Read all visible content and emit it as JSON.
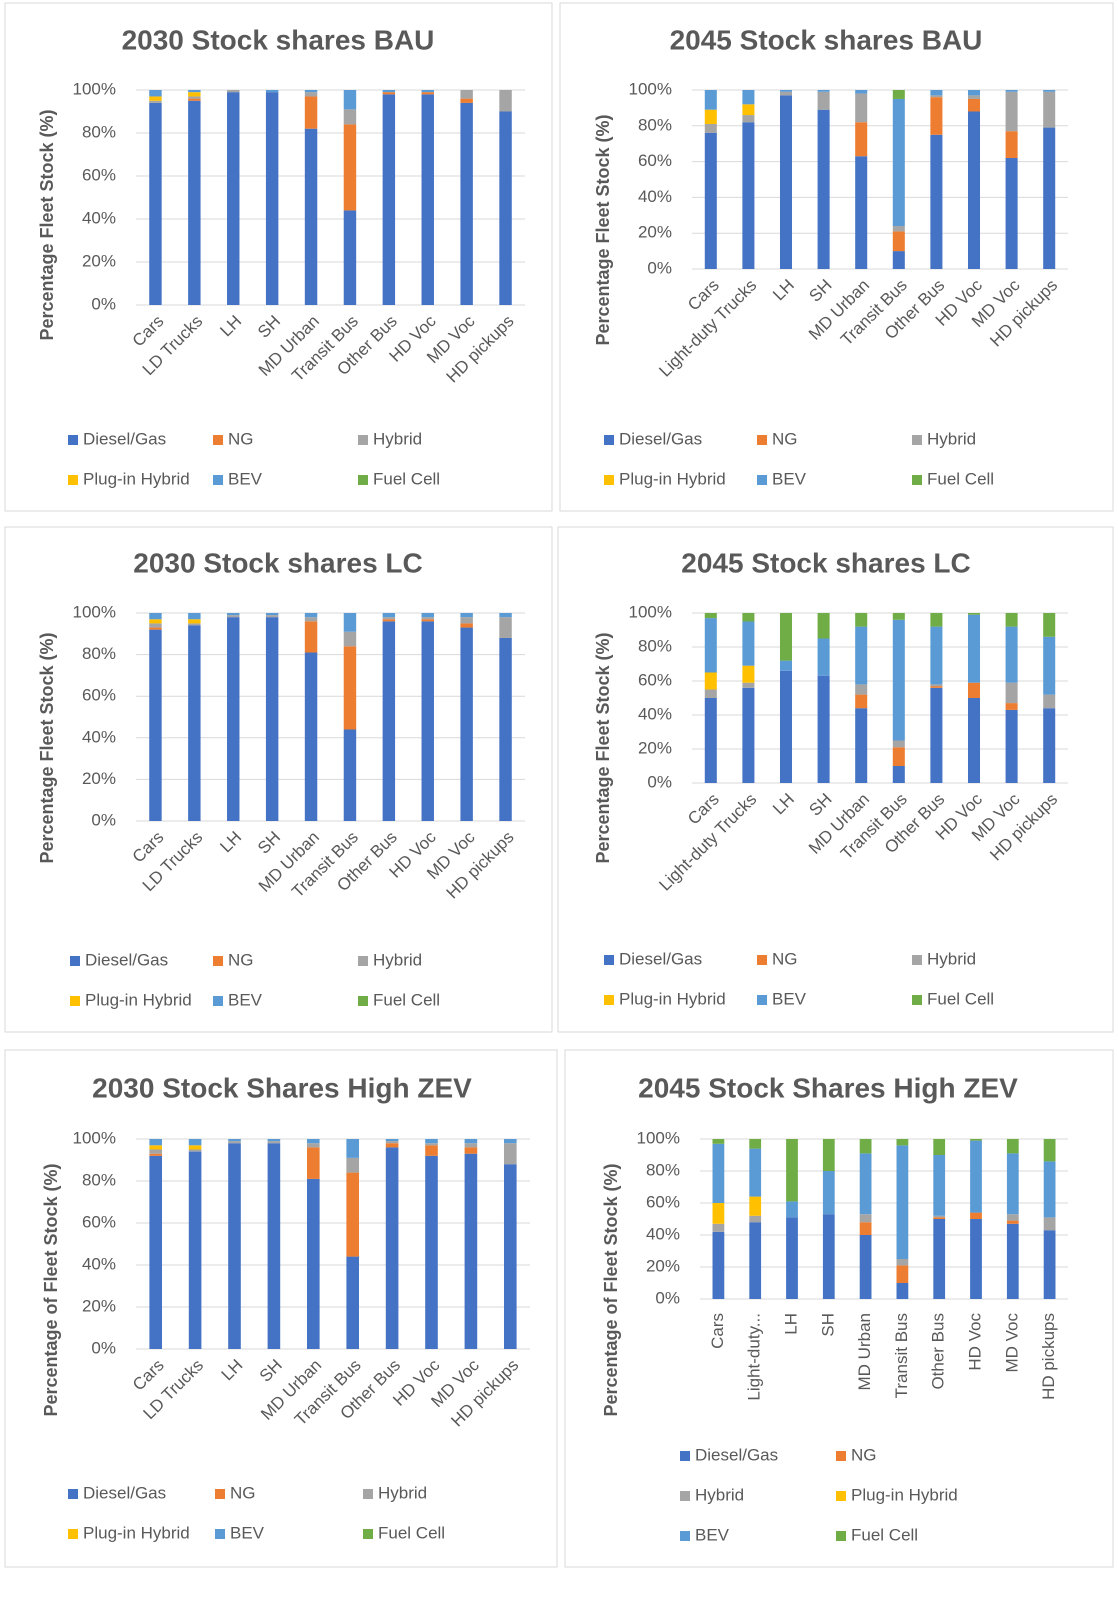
{
  "chart_data": [
    {
      "type": "stacked_bar",
      "title": "2030 Stock shares BAU",
      "y_label": "Percentage Fleet Stock (%)",
      "categories": [
        "Cars",
        "LD Trucks",
        "LH",
        "SH",
        "MD Urban",
        "Transit Bus",
        "Other Bus",
        "HD Voc",
        "MD Voc",
        "HD pickups"
      ],
      "series": [
        {
          "name": "Diesel/Gas",
          "color": "#4472c4",
          "values": [
            94,
            95,
            99,
            99,
            82,
            44,
            98,
            98,
            94,
            90
          ]
        },
        {
          "name": "NG",
          "color": "#ed7d31",
          "values": [
            0,
            1,
            0,
            0,
            15,
            40,
            1,
            1,
            2,
            0
          ]
        },
        {
          "name": "Hybrid",
          "color": "#a5a5a5",
          "values": [
            1,
            1,
            1,
            0,
            2,
            7,
            0,
            0,
            4,
            10
          ]
        },
        {
          "name": "Plug-in Hybrid",
          "color": "#ffc000",
          "values": [
            2,
            2,
            0,
            0,
            0,
            0,
            0,
            0,
            0,
            0
          ]
        },
        {
          "name": "BEV",
          "color": "#5b9bd5",
          "values": [
            3,
            1,
            0,
            1,
            1,
            9,
            1,
            1,
            0,
            0
          ]
        },
        {
          "name": "Fuel Cell",
          "color": "#70ad47",
          "values": [
            0,
            0,
            0,
            0,
            0,
            0,
            0,
            0,
            0,
            0
          ]
        }
      ],
      "ylim": [
        0,
        100
      ],
      "yticks": [
        {
          "value": 0,
          "label": "0%"
        },
        {
          "value": 20,
          "label": "20%"
        },
        {
          "value": 40,
          "label": "40%"
        },
        {
          "value": 60,
          "label": "60%"
        },
        {
          "value": 80,
          "label": "80%"
        },
        {
          "value": 100,
          "label": "100%"
        }
      ],
      "grid": true,
      "legend": "bottom"
    },
    {
      "type": "stacked_bar",
      "title": "2045 Stock shares BAU",
      "y_label": "Percentage Fleet Stock (%)",
      "categories": [
        "Cars",
        "Light-duty Trucks",
        "LH",
        "SH",
        "MD Urban",
        "Transit Bus",
        "Other Bus",
        "HD Voc",
        "MD Voc",
        "HD pickups"
      ],
      "series": [
        {
          "name": "Diesel/Gas",
          "color": "#4472c4",
          "values": [
            76,
            82,
            97,
            89,
            63,
            10,
            75,
            88,
            62,
            79
          ]
        },
        {
          "name": "NG",
          "color": "#ed7d31",
          "values": [
            0,
            0,
            0,
            0,
            19,
            11,
            21,
            7,
            15,
            0
          ]
        },
        {
          "name": "Hybrid",
          "color": "#a5a5a5",
          "values": [
            5,
            4,
            2,
            10,
            16,
            3,
            1,
            2,
            22,
            20
          ]
        },
        {
          "name": "Plug-in Hybrid",
          "color": "#ffc000",
          "values": [
            8,
            6,
            0,
            0,
            0,
            0,
            0,
            0,
            0,
            0
          ]
        },
        {
          "name": "BEV",
          "color": "#5b9bd5",
          "values": [
            11,
            8,
            1,
            1,
            2,
            71,
            3,
            3,
            1,
            1
          ]
        },
        {
          "name": "Fuel Cell",
          "color": "#70ad47",
          "values": [
            0,
            0,
            0,
            0,
            0,
            5,
            0,
            0,
            0,
            0
          ]
        }
      ],
      "ylim": [
        0,
        100
      ],
      "yticks": [
        {
          "value": 0,
          "label": "0%"
        },
        {
          "value": 20,
          "label": "20%"
        },
        {
          "value": 40,
          "label": "40%"
        },
        {
          "value": 60,
          "label": "60%"
        },
        {
          "value": 80,
          "label": "80%"
        },
        {
          "value": 100,
          "label": "100%"
        }
      ],
      "grid": true,
      "legend": "bottom"
    },
    {
      "type": "stacked_bar",
      "title": "2030 Stock shares LC",
      "y_label": "Percentage Fleet Stock (%)",
      "categories": [
        "Cars",
        "LD Trucks",
        "LH",
        "SH",
        "MD Urban",
        "Transit Bus",
        "Other Bus",
        "HD Voc",
        "MD Voc",
        "HD pickups"
      ],
      "series": [
        {
          "name": "Diesel/Gas",
          "color": "#4472c4",
          "values": [
            92,
            94,
            98,
            98,
            81,
            44,
            96,
            96,
            93,
            88
          ]
        },
        {
          "name": "NG",
          "color": "#ed7d31",
          "values": [
            1,
            0,
            0,
            0,
            15,
            40,
            1,
            1,
            2,
            0
          ]
        },
        {
          "name": "Hybrid",
          "color": "#a5a5a5",
          "values": [
            2,
            1,
            1,
            1,
            2,
            7,
            1,
            1,
            3,
            10
          ]
        },
        {
          "name": "Plug-in Hybrid",
          "color": "#ffc000",
          "values": [
            2,
            2,
            0,
            0,
            0,
            0,
            0,
            0,
            0,
            0
          ]
        },
        {
          "name": "BEV",
          "color": "#5b9bd5",
          "values": [
            3,
            3,
            1,
            1,
            2,
            9,
            2,
            2,
            2,
            2
          ]
        },
        {
          "name": "Fuel Cell",
          "color": "#70ad47",
          "values": [
            0,
            0,
            0,
            0,
            0,
            0,
            0,
            0,
            0,
            0
          ]
        }
      ],
      "ylim": [
        0,
        100
      ],
      "yticks": [
        {
          "value": 0,
          "label": "0%"
        },
        {
          "value": 20,
          "label": "20%"
        },
        {
          "value": 40,
          "label": "40%"
        },
        {
          "value": 60,
          "label": "60%"
        },
        {
          "value": 80,
          "label": "80%"
        },
        {
          "value": 100,
          "label": "100%"
        }
      ],
      "grid": true,
      "legend": "bottom"
    },
    {
      "type": "stacked_bar",
      "title": "2045 Stock shares LC",
      "y_label": "Percentage Fleet Stock (%)",
      "categories": [
        "Cars",
        "Light-duty Trucks",
        "LH",
        "SH",
        "MD Urban",
        "Transit Bus",
        "Other Bus",
        "HD Voc",
        "MD Voc",
        "HD pickups"
      ],
      "series": [
        {
          "name": "Diesel/Gas",
          "color": "#4472c4",
          "values": [
            50,
            56,
            66,
            63,
            44,
            10,
            56,
            50,
            43,
            44
          ]
        },
        {
          "name": "NG",
          "color": "#ed7d31",
          "values": [
            0,
            0,
            0,
            0,
            8,
            11,
            1,
            9,
            4,
            0
          ]
        },
        {
          "name": "Hybrid",
          "color": "#a5a5a5",
          "values": [
            5,
            3,
            0,
            0,
            6,
            4,
            1,
            0,
            12,
            8
          ]
        },
        {
          "name": "Plug-in Hybrid",
          "color": "#ffc000",
          "values": [
            10,
            10,
            0,
            0,
            0,
            0,
            0,
            0,
            0,
            0
          ]
        },
        {
          "name": "BEV",
          "color": "#5b9bd5",
          "values": [
            32,
            26,
            6,
            22,
            34,
            71,
            34,
            40,
            33,
            34
          ]
        },
        {
          "name": "Fuel Cell",
          "color": "#70ad47",
          "values": [
            3,
            5,
            28,
            15,
            8,
            4,
            8,
            1,
            8,
            14
          ]
        }
      ],
      "ylim": [
        0,
        100
      ],
      "yticks": [
        {
          "value": 0,
          "label": "0%"
        },
        {
          "value": 20,
          "label": "20%"
        },
        {
          "value": 40,
          "label": "40%"
        },
        {
          "value": 60,
          "label": "60%"
        },
        {
          "value": 80,
          "label": "80%"
        },
        {
          "value": 100,
          "label": "100%"
        }
      ],
      "grid": true,
      "legend": "bottom"
    },
    {
      "type": "stacked_bar",
      "title": "2030 Stock Shares High ZEV",
      "y_label": "Percentage of Fleet Stock (%)",
      "categories": [
        "Cars",
        "LD Trucks",
        "LH",
        "SH",
        "MD Urban",
        "Transit Bus",
        "Other Bus",
        "HD Voc",
        "MD Voc",
        "HD pickups"
      ],
      "series": [
        {
          "name": "Diesel/Gas",
          "color": "#4472c4",
          "values": [
            92,
            94,
            98,
            98,
            81,
            44,
            96,
            92,
            93,
            88
          ]
        },
        {
          "name": "NG",
          "color": "#ed7d31",
          "values": [
            1,
            0,
            0,
            0,
            15,
            40,
            2,
            5,
            3,
            0
          ]
        },
        {
          "name": "Hybrid",
          "color": "#a5a5a5",
          "values": [
            2,
            1,
            1,
            1,
            2,
            7,
            1,
            1,
            2,
            10
          ]
        },
        {
          "name": "Plug-in Hybrid",
          "color": "#ffc000",
          "values": [
            2,
            2,
            0,
            0,
            0,
            0,
            0,
            0,
            0,
            0
          ]
        },
        {
          "name": "BEV",
          "color": "#5b9bd5",
          "values": [
            3,
            3,
            1,
            1,
            2,
            9,
            1,
            2,
            2,
            2
          ]
        },
        {
          "name": "Fuel Cell",
          "color": "#70ad47",
          "values": [
            0,
            0,
            0,
            0,
            0,
            0,
            0,
            0,
            0,
            0
          ]
        }
      ],
      "ylim": [
        0,
        100
      ],
      "yticks": [
        {
          "value": 0,
          "label": "0%"
        },
        {
          "value": 20,
          "label": "20%"
        },
        {
          "value": 40,
          "label": "40%"
        },
        {
          "value": 60,
          "label": "60%"
        },
        {
          "value": 80,
          "label": "80%"
        },
        {
          "value": 100,
          "label": "100%"
        }
      ],
      "grid": true,
      "legend": "bottom"
    },
    {
      "type": "stacked_bar",
      "title": "2045 Stock Shares High ZEV",
      "y_label": "Percentage of Fleet Stock (%)",
      "categories": [
        "Cars",
        "Light-duty...",
        "LH",
        "SH",
        "MD Urban",
        "Transit Bus",
        "Other Bus",
        "HD Voc",
        "MD Voc",
        "HD pickups"
      ],
      "series": [
        {
          "name": "Diesel/Gas",
          "color": "#4472c4",
          "values": [
            42,
            48,
            51,
            53,
            40,
            10,
            50,
            50,
            47,
            43
          ]
        },
        {
          "name": "NG",
          "color": "#ed7d31",
          "values": [
            0,
            0,
            0,
            0,
            8,
            11,
            1,
            4,
            2,
            0
          ]
        },
        {
          "name": "Hybrid",
          "color": "#a5a5a5",
          "values": [
            5,
            4,
            0,
            0,
            5,
            4,
            1,
            0,
            4,
            8
          ]
        },
        {
          "name": "Plug-in Hybrid",
          "color": "#ffc000",
          "values": [
            13,
            12,
            0,
            0,
            0,
            0,
            0,
            0,
            0,
            0
          ]
        },
        {
          "name": "BEV",
          "color": "#5b9bd5",
          "values": [
            37,
            30,
            10,
            27,
            38,
            71,
            38,
            45,
            38,
            35
          ]
        },
        {
          "name": "Fuel Cell",
          "color": "#70ad47",
          "values": [
            3,
            6,
            39,
            20,
            9,
            4,
            10,
            1,
            9,
            14
          ]
        }
      ],
      "ylim": [
        0,
        100
      ],
      "yticks": [
        {
          "value": 0,
          "label": "0%"
        },
        {
          "value": 20,
          "label": "20%"
        },
        {
          "value": 40,
          "label": "40%"
        },
        {
          "value": 60,
          "label": "60%"
        },
        {
          "value": 80,
          "label": "80%"
        },
        {
          "value": 100,
          "label": "100%"
        }
      ],
      "grid": true,
      "legend": "bottom"
    }
  ]
}
